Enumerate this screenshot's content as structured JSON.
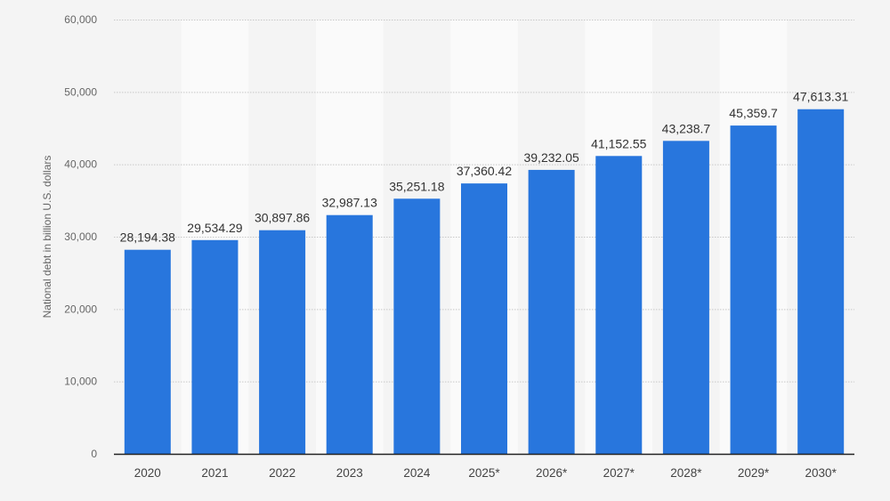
{
  "chart_data": {
    "type": "bar",
    "title": "",
    "xlabel": "",
    "ylabel": "National debt in billion U.S. dollars",
    "categories": [
      "2020",
      "2021",
      "2022",
      "2023",
      "2024",
      "2025*",
      "2026*",
      "2027*",
      "2028*",
      "2029*",
      "2030*"
    ],
    "values": [
      28194.38,
      29534.29,
      30897.86,
      32987.13,
      35251.18,
      37360.42,
      39232.05,
      41152.55,
      43238.7,
      45359.7,
      47613.31
    ],
    "data_labels": [
      "28,194.38",
      "29,534.29",
      "30,897.86",
      "32,987.13",
      "35,251.18",
      "37,360.42",
      "39,232.05",
      "41,152.55",
      "43,238.7",
      "45,359.7",
      "47,613.31"
    ],
    "yticks": [
      0,
      10000,
      20000,
      30000,
      40000,
      50000,
      60000
    ],
    "ytick_labels": [
      "0",
      "10,000",
      "20,000",
      "30,000",
      "40,000",
      "50,000",
      "60,000"
    ],
    "ylim": [
      0,
      60000
    ],
    "grid": true,
    "colors": {
      "bar": "#2876dd",
      "background": "#f4f4f4",
      "band": "#fafafa"
    }
  }
}
